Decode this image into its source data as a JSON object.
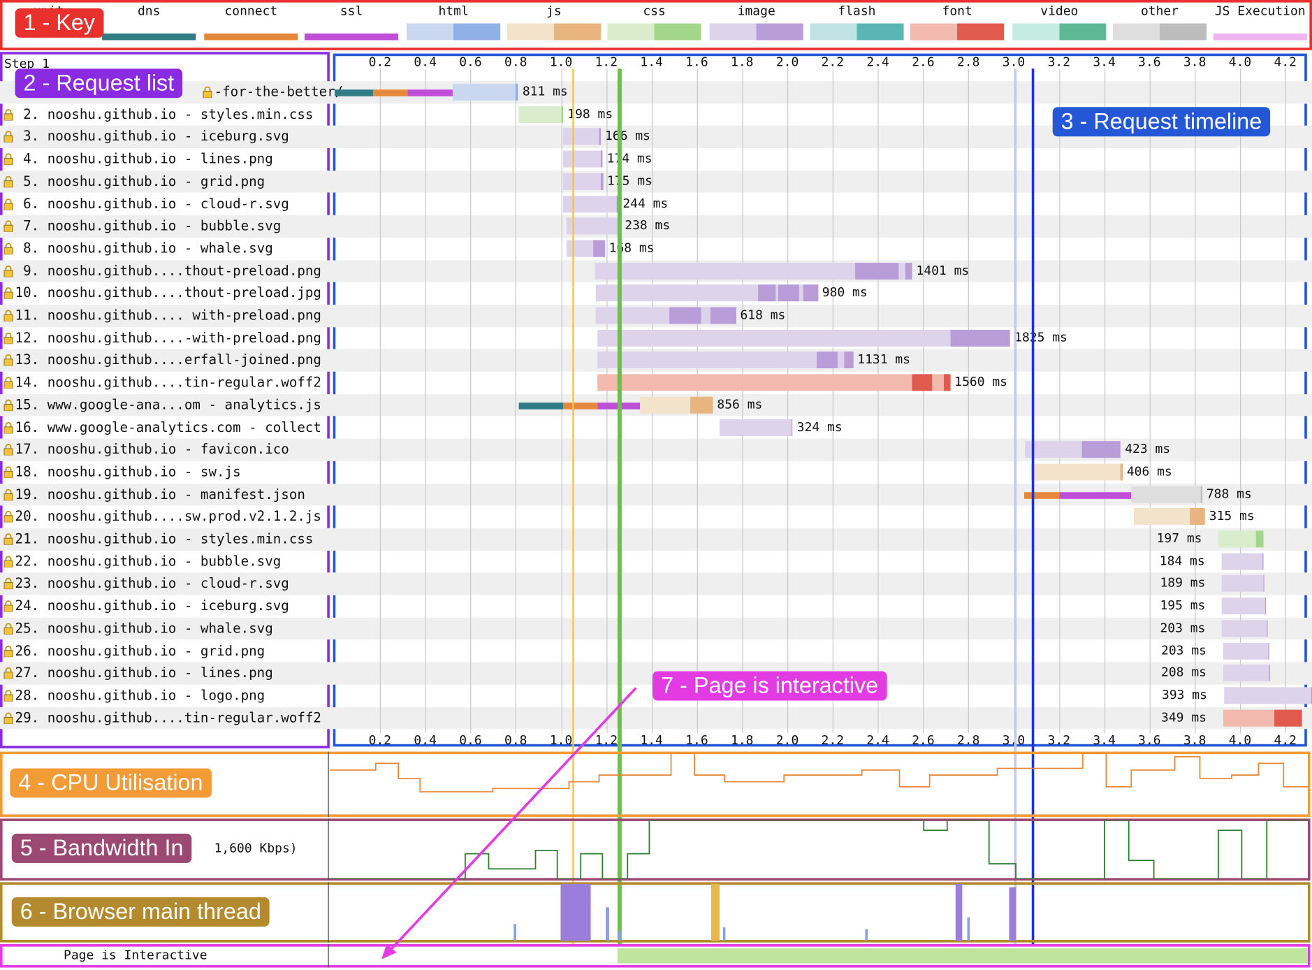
{
  "key": {
    "items": [
      {
        "label": "unit",
        "colors": []
      },
      {
        "label": "dns",
        "colors": [
          "#2f7c84"
        ]
      },
      {
        "label": "connect",
        "colors": [
          "#e6883c"
        ]
      },
      {
        "label": "ssl",
        "colors": [
          "#bf4fd6"
        ]
      },
      {
        "label": "html",
        "colors": [
          "#c9d8ef",
          "#8fb1e8"
        ]
      },
      {
        "label": "js",
        "colors": [
          "#f4e3cb",
          "#e8b47f"
        ]
      },
      {
        "label": "css",
        "colors": [
          "#d9edcd",
          "#a3d68b"
        ]
      },
      {
        "label": "image",
        "colors": [
          "#ddd3ea",
          "#b89dd9"
        ]
      },
      {
        "label": "flash",
        "colors": [
          "#bfe3e3",
          "#5ab5b5"
        ]
      },
      {
        "label": "font",
        "colors": [
          "#f2b9ae",
          "#e05a4e"
        ]
      },
      {
        "label": "video",
        "colors": [
          "#c5ece0",
          "#5cb895"
        ]
      },
      {
        "label": "other",
        "colors": [
          "#dedede",
          "#bdbdbd"
        ]
      },
      {
        "label": "JS Execution",
        "colors": [
          "#efb4f1"
        ]
      }
    ]
  },
  "step_label": "Step 1",
  "ticks": [
    "0.2",
    "0.4",
    "0.6",
    "0.8",
    "1.0",
    "1.2",
    "1.4",
    "1.6",
    "1.8",
    "2.0",
    "2.2",
    "2.4",
    "2.6",
    "2.8",
    "3.0",
    "3.2",
    "3.4",
    "3.6",
    "3.8",
    "4.0",
    "4.2"
  ],
  "requests": [
    {
      "label": "1. nooshu.github.io - ...for-the-better/",
      "shown": "-for-the-better/",
      "duration": "811 ms",
      "type": "html",
      "start": 0.0,
      "end": 0.811,
      "dns": [
        0.0,
        0.17
      ],
      "connect": [
        0.17,
        0.32
      ],
      "ssl": [
        0.32,
        0.52
      ],
      "dl_frac": 0.04
    },
    {
      "label": "2. nooshu.github.io - styles.min.css",
      "duration": "198 ms",
      "type": "css",
      "start": 0.812,
      "end": 1.01,
      "dl_frac": 0.05
    },
    {
      "label": "3. nooshu.github.io - iceburg.svg",
      "duration": "166 ms",
      "type": "image",
      "start": 1.01,
      "end": 1.176,
      "dl_frac": 0.05
    },
    {
      "label": "4. nooshu.github.io - lines.png",
      "duration": "174 ms",
      "type": "image",
      "start": 1.01,
      "end": 1.184,
      "dl_frac": 0.05
    },
    {
      "label": "5. nooshu.github.io - grid.png",
      "duration": "175 ms",
      "type": "image",
      "start": 1.01,
      "end": 1.185,
      "dl_frac": 0.05
    },
    {
      "label": "6. nooshu.github.io - cloud-r.svg",
      "duration": "244 ms",
      "type": "image",
      "start": 1.01,
      "end": 1.254,
      "dl_frac": 0.03
    },
    {
      "label": "7. nooshu.github.io - bubble.svg",
      "duration": "238 ms",
      "type": "image",
      "start": 1.025,
      "end": 1.263,
      "dl_frac": 0.03
    },
    {
      "label": "8. nooshu.github.io - whale.svg",
      "duration": "168 ms",
      "type": "image",
      "start": 1.025,
      "end": 1.193,
      "dl_frac": 0.3
    },
    {
      "label": "9. nooshu.github....thout-preload.png",
      "duration": "1401 ms",
      "type": "image",
      "start": 1.15,
      "end": 2.551,
      "dl_segments": [
        [
          2.3,
          2.49
        ],
        [
          2.52,
          2.551
        ]
      ]
    },
    {
      "label": "10. nooshu.github....thout-preload.jpg",
      "duration": "980 ms",
      "type": "image",
      "start": 1.155,
      "end": 2.135,
      "dl_segments": [
        [
          1.87,
          1.95
        ],
        [
          1.96,
          2.05
        ],
        [
          2.07,
          2.135
        ]
      ]
    },
    {
      "label": "11. nooshu.github.... with-preload.png",
      "duration": "618 ms",
      "type": "image",
      "start": 1.155,
      "end": 1.773,
      "dl_segments": [
        [
          1.48,
          1.62
        ],
        [
          1.66,
          1.773
        ]
      ]
    },
    {
      "label": "12. nooshu.github....-with-preload.png",
      "duration": "1825 ms",
      "type": "image",
      "start": 1.16,
      "end": 2.985,
      "dl_segments": [
        [
          2.72,
          2.985
        ]
      ]
    },
    {
      "label": "13. nooshu.github....erfall-joined.png",
      "duration": "1131 ms",
      "type": "image",
      "start": 1.16,
      "end": 2.291,
      "dl_segments": [
        [
          2.13,
          2.22
        ],
        [
          2.25,
          2.291
        ]
      ]
    },
    {
      "label": "14. nooshu.github....tin-regular.woff2",
      "duration": "1560 ms",
      "type": "font",
      "start": 1.16,
      "end": 2.72,
      "dl_segments": [
        [
          2.55,
          2.64
        ],
        [
          2.69,
          2.72
        ]
      ]
    },
    {
      "label": "15. www.google-ana...om - analytics.js",
      "duration": "856 ms",
      "type": "js",
      "start": 0.815,
      "end": 1.671,
      "dns": [
        0.815,
        1.01
      ],
      "connect": [
        1.01,
        1.16
      ],
      "ssl": [
        1.16,
        1.35
      ],
      "dl_segments": [
        [
          1.57,
          1.671
        ]
      ]
    },
    {
      "label": "16. www.google-analytics.com - collect",
      "duration": "324 ms",
      "type": "image",
      "start": 1.7,
      "end": 2.024,
      "dl_frac": 0.02
    },
    {
      "label": "17. nooshu.github.io - favicon.ico",
      "duration": "423 ms",
      "type": "image",
      "start": 3.05,
      "end": 3.473,
      "dl_segments": [
        [
          3.3,
          3.473
        ]
      ]
    },
    {
      "label": "18. nooshu.github.io - sw.js",
      "duration": "406 ms",
      "type": "js",
      "start": 3.075,
      "end": 3.481,
      "dl_frac": 0.02
    },
    {
      "label": "19. nooshu.github.io - manifest.json",
      "duration": "788 ms",
      "type": "other",
      "start": 3.045,
      "end": 3.833,
      "connect": [
        3.045,
        3.2
      ],
      "ssl": [
        3.2,
        3.52
      ],
      "dl_frac": 0.02
    },
    {
      "label": "20. nooshu.github....sw.prod.v2.1.2.js",
      "duration": "315 ms",
      "type": "js",
      "start": 3.53,
      "end": 3.845,
      "dl_segments": [
        [
          3.78,
          3.845
        ]
      ]
    },
    {
      "label": "21. nooshu.github.io - styles.min.css",
      "duration": "197 ms",
      "type": "css",
      "start": 3.905,
      "end": 4.102,
      "dl_segments": [
        [
          4.07,
          4.102
        ]
      ],
      "label_left": true
    },
    {
      "label": "22. nooshu.github.io - bubble.svg",
      "duration": "184 ms",
      "type": "image",
      "start": 3.918,
      "end": 4.102,
      "dl_frac": 0.02,
      "label_left": true
    },
    {
      "label": "23. nooshu.github.io - cloud-r.svg",
      "duration": "189 ms",
      "type": "image",
      "start": 3.92,
      "end": 4.109,
      "dl_frac": 0.02,
      "label_left": true
    },
    {
      "label": "24. nooshu.github.io - iceburg.svg",
      "duration": "195 ms",
      "type": "image",
      "start": 3.92,
      "end": 4.115,
      "dl_frac": 0.02,
      "label_left": true
    },
    {
      "label": "25. nooshu.github.io - whale.svg",
      "duration": "203 ms",
      "type": "image",
      "start": 3.92,
      "end": 4.123,
      "dl_frac": 0.02,
      "label_left": true
    },
    {
      "label": "26. nooshu.github.io - grid.png",
      "duration": "203 ms",
      "type": "image",
      "start": 3.925,
      "end": 4.128,
      "dl_frac": 0.02,
      "label_left": true
    },
    {
      "label": "27. nooshu.github.io - lines.png",
      "duration": "208 ms",
      "type": "image",
      "start": 3.925,
      "end": 4.133,
      "dl_frac": 0.02,
      "label_left": true
    },
    {
      "label": "28. nooshu.github.io - logo.png",
      "duration": "393 ms",
      "type": "image",
      "start": 3.928,
      "end": 4.321,
      "dl_frac": 0.02,
      "label_left": true
    },
    {
      "label": "29. nooshu.github....tin-regular.woff2",
      "duration": "349 ms",
      "type": "font",
      "start": 3.925,
      "end": 4.274,
      "dl_segments": [
        [
          4.15,
          4.274
        ]
      ],
      "label_left": true
    }
  ],
  "bandwidth_label": "1,600 Kbps)",
  "interactive_label": "Page is Interactive",
  "callouts": {
    "key": "1 - Key",
    "request_list": "2 - Request list",
    "request_timeline": "3 - Request timeline",
    "cpu": "4 - CPU Utilisation",
    "bandwidth": "5 - Bandwidth In",
    "main_thread": "6 - Browser main thread",
    "interactive": "7 - Page is interactive"
  },
  "markers": {
    "start_render": 1.05,
    "dom_interactive": 1.25,
    "dom_content_loaded": 3.0,
    "on_load": 3.08
  },
  "interactive_start": 1.25
}
